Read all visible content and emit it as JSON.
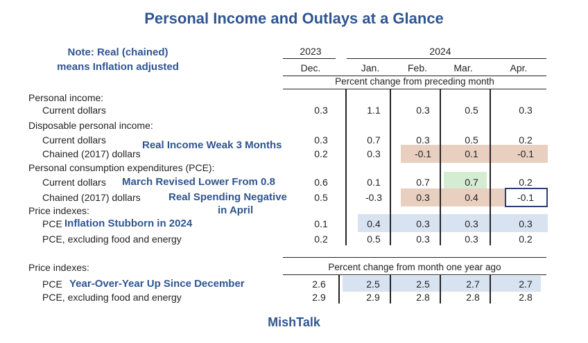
{
  "title": "Personal Income and Outlays at a Glance",
  "note": {
    "line1": "Note: Real (chained)",
    "line2": "means Inflation adjusted"
  },
  "years": {
    "y2023": "2023",
    "y2024": "2024"
  },
  "months": [
    "Dec.",
    "Jan.",
    "Feb.",
    "Mar.",
    "Apr."
  ],
  "section1_header": "Percent change from preceding month",
  "section2_header": "Percent change from month one year ago",
  "rows": [
    {
      "label": "Personal income:",
      "values": []
    },
    {
      "label": "Current dollars",
      "values": [
        "0.3",
        "1.1",
        "0.3",
        "0.5",
        "0.3"
      ]
    },
    {
      "label": "Disposable personal income:",
      "values": []
    },
    {
      "label": "Current dollars",
      "values": [
        "0.3",
        "0.7",
        "0.3",
        "0.5",
        "0.2"
      ]
    },
    {
      "label": "Chained (2017) dollars",
      "values": [
        "0.2",
        "0.3",
        "-0.1",
        "0.1",
        "-0.1"
      ]
    },
    {
      "label": "Personal consumption expenditures (PCE):",
      "values": []
    },
    {
      "label": "Current dollars",
      "values": [
        "0.6",
        "0.1",
        "0.7",
        "0.7",
        "0.2"
      ]
    },
    {
      "label": "Chained (2017) dollars",
      "values": [
        "0.5",
        "-0.3",
        "0.3",
        "0.4",
        "-0.1"
      ]
    },
    {
      "label": "Price indexes:",
      "values": []
    },
    {
      "label": "PCE",
      "values": [
        "0.1",
        "0.4",
        "0.3",
        "0.3",
        "0.3"
      ]
    },
    {
      "label": "PCE, excluding food and energy",
      "values": [
        "0.2",
        "0.5",
        "0.3",
        "0.3",
        "0.2"
      ]
    }
  ],
  "yoy_rows": [
    {
      "label": "Price indexes:",
      "values": []
    },
    {
      "label": "PCE",
      "values": [
        "2.6",
        "2.5",
        "2.5",
        "2.7",
        "2.7"
      ]
    },
    {
      "label": "PCE, excluding food and energy",
      "values": [
        "2.9",
        "2.9",
        "2.8",
        "2.8",
        "2.8"
      ]
    }
  ],
  "annotations": {
    "real_income": "Real Income Weak 3 Months",
    "march_revised": "March Revised Lower From 0.8",
    "real_spending_1": "Real Spending Negative",
    "real_spending_2": "in April",
    "inflation": "Inflation Stubborn in 2024",
    "yoy": "Year-Over-Year Up Since December"
  },
  "footer": "MishTalk",
  "colors": {
    "title": "#2f5590",
    "highlight_tan": "#e9cfc0",
    "highlight_green": "#d4ecd2",
    "highlight_blue": "#d8e3f2",
    "box_border": "#2b3f6e"
  }
}
